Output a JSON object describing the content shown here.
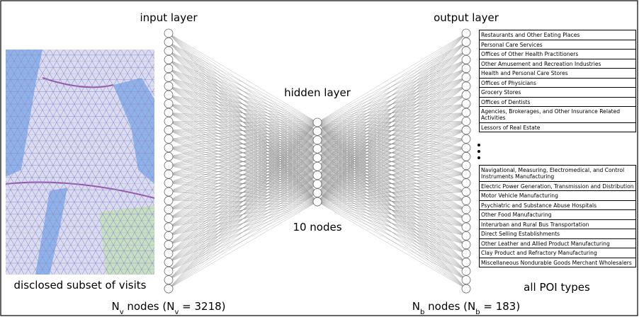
{
  "labels": {
    "input_layer": "input layer",
    "output_layer": "output layer",
    "hidden_layer": "hidden layer",
    "hidden_nodes": "10 nodes",
    "map_caption": "disclosed subset of visits",
    "poi_caption": "all POI types",
    "input_nodes": [
      "N",
      "v",
      " nodes (",
      "N",
      "v",
      " = 3218)"
    ],
    "output_nodes": [
      "N",
      "b",
      " nodes (",
      "N",
      "b",
      " = 183)"
    ]
  },
  "poi_types": {
    "top": [
      "Restaurants and Other Eating Places",
      "Personal Care Services",
      "Offices of Other Health Practitioners",
      "Other Amusement and Recreation Industries",
      "Health and Personal Care Stores",
      "Offices of Physicians",
      "Grocery Stores",
      "Offices of Dentists",
      "Agencies, Brokerages, and Other Insurance Related Activities",
      "Lessors of Real Estate"
    ],
    "bottom": [
      "Navigational, Measuring, Electromedical, and Control Instruments Manufacturing",
      "Electric Power Generation, Transmission and Distribution",
      "Motor Vehicle Manufacturing",
      "Psychiatric and Substance Abuse Hospitals",
      "Other Food Manufacturing",
      "Interurban and Rural Bus Transportation",
      "Direct Selling Establishments",
      "Other Leather and Allied Product Manufacturing",
      "Clay Product and Refractory Manufacturing",
      "Miscellaneous Nondurable Goods Merchant Wholesalers"
    ]
  }
}
